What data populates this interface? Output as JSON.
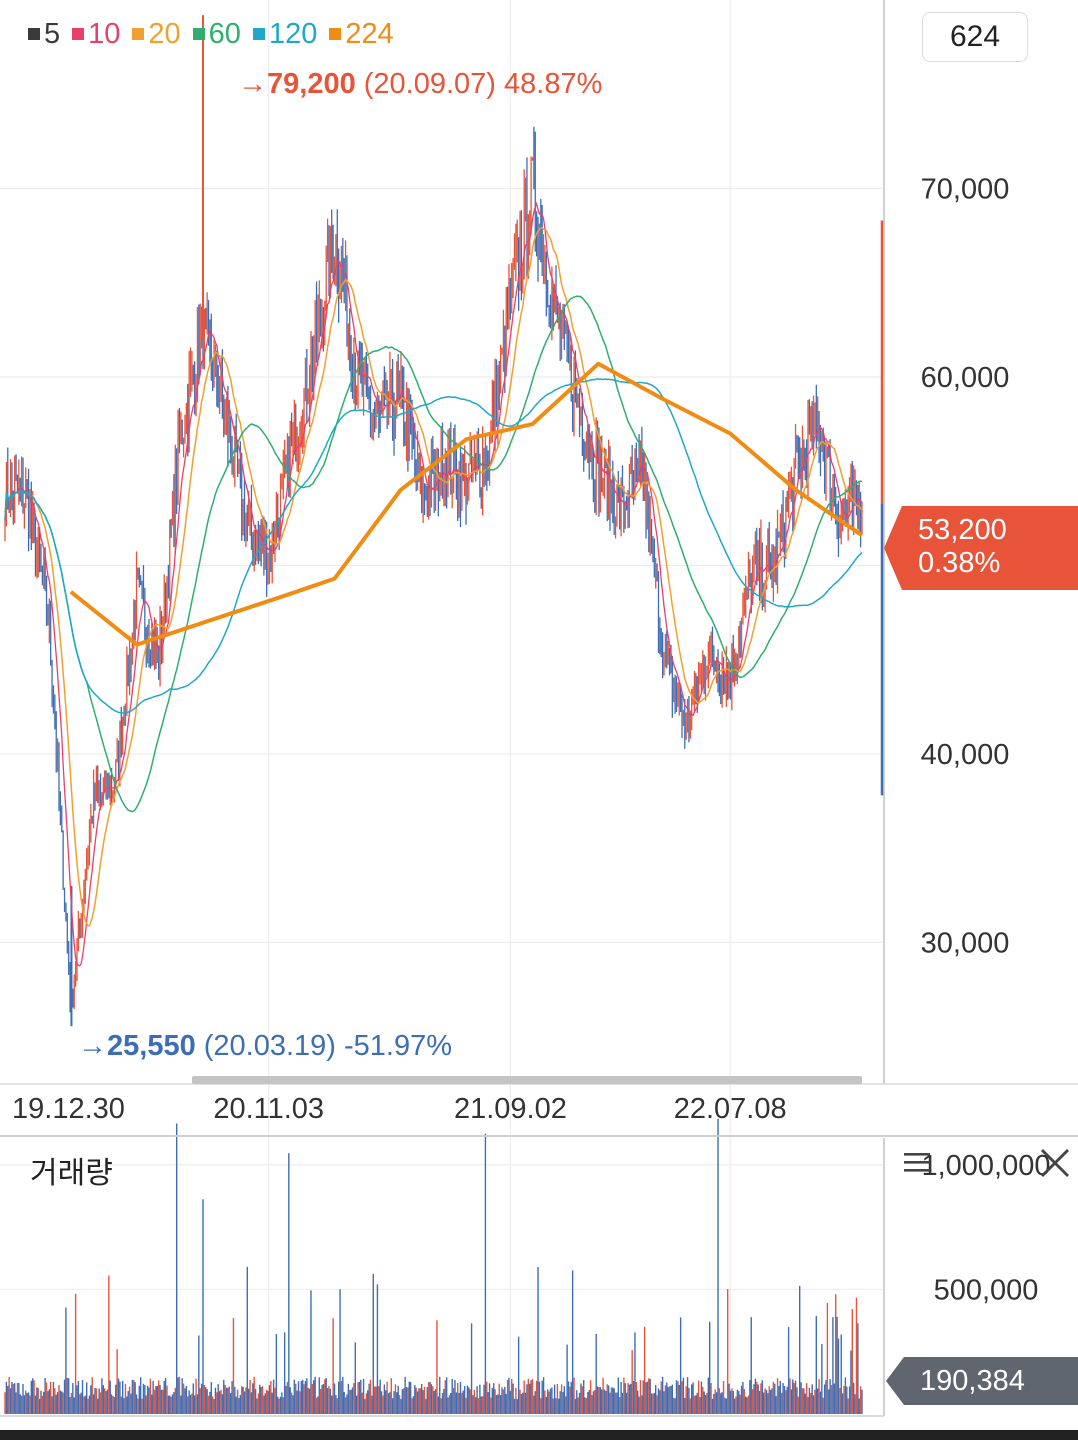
{
  "legend": [
    {
      "label": "5",
      "color": "#3a3a3a"
    },
    {
      "label": "10",
      "color": "#e8406a"
    },
    {
      "label": "20",
      "color": "#f0a030"
    },
    {
      "label": "60",
      "color": "#2fae6e"
    },
    {
      "label": "120",
      "color": "#20a8c8"
    },
    {
      "label": "224",
      "color": "#f08c14"
    }
  ],
  "period": "624",
  "high": {
    "arrow": "→",
    "price": "79,200",
    "detail": "(20.09.07) 48.87%",
    "color": "#e8543a"
  },
  "low": {
    "arrow": "→",
    "price": "25,550",
    "detail": "(20.03.19) -51.97%",
    "color": "#3d6eb5"
  },
  "current": {
    "price": "53,200",
    "change": "0.38%",
    "color": "#e8543a"
  },
  "volume": {
    "title": "거래량",
    "current": "190,384",
    "up_color": "#e8543a",
    "down_color": "#3d6eb5"
  },
  "icons": {
    "menu": "menu-icon",
    "close": "close-icon"
  },
  "chart_data": [
    {
      "type": "candlestick",
      "title": "",
      "x_ticks": [
        "19.12.30",
        "20.11.03",
        "21.09.02",
        "22.07.08"
      ],
      "y_ticks": [
        "70,000",
        "60,000",
        "50,000",
        "40,000",
        "30,000"
      ],
      "ylim": [
        22700,
        80000
      ],
      "grid": true,
      "legend_position": "top-left",
      "close_series": {
        "x": [
          "19.12.30",
          "20.01",
          "20.02",
          "20.03.19",
          "20.04",
          "20.05",
          "20.06",
          "20.07",
          "20.08",
          "20.09.07",
          "20.09",
          "20.10",
          "20.11.03",
          "20.11",
          "20.12",
          "21.01",
          "21.02",
          "21.03",
          "21.04",
          "21.05",
          "21.06",
          "21.07",
          "21.08",
          "21.09.02",
          "21.10",
          "21.11",
          "21.12",
          "22.01",
          "22.02",
          "22.03",
          "22.04",
          "22.05",
          "22.06",
          "22.07.08",
          "22.08",
          "22.09",
          "22.10",
          "22.11",
          "22.12",
          "23.01"
        ],
        "y": [
          54000,
          53500,
          47000,
          26500,
          37500,
          38500,
          48500,
          45000,
          57000,
          62500,
          58000,
          52000,
          50500,
          56000,
          61000,
          67500,
          60000,
          57500,
          59000,
          53500,
          55500,
          54500,
          56000,
          64000,
          70000,
          63500,
          59000,
          55000,
          53000,
          55000,
          45000,
          41500,
          45500,
          44000,
          49500,
          50000,
          55000,
          57500,
          52500,
          53200
        ]
      },
      "moving_averages": {
        "224": {
          "x": [
            "20.03",
            "20.06",
            "20.11",
            "21.01",
            "21.04",
            "21.07",
            "21.10",
            "22.01",
            "22.04",
            "22.07",
            "22.10",
            "23.01"
          ],
          "y": [
            48600,
            45800,
            48500,
            49300,
            54000,
            56700,
            57500,
            60700,
            58800,
            57000,
            54000,
            51600
          ]
        }
      }
    },
    {
      "type": "bar",
      "title": "거래량",
      "y_ticks": [
        "1,000,000",
        "500,000"
      ],
      "ylim": [
        0,
        1100000
      ],
      "current": 190384
    }
  ]
}
